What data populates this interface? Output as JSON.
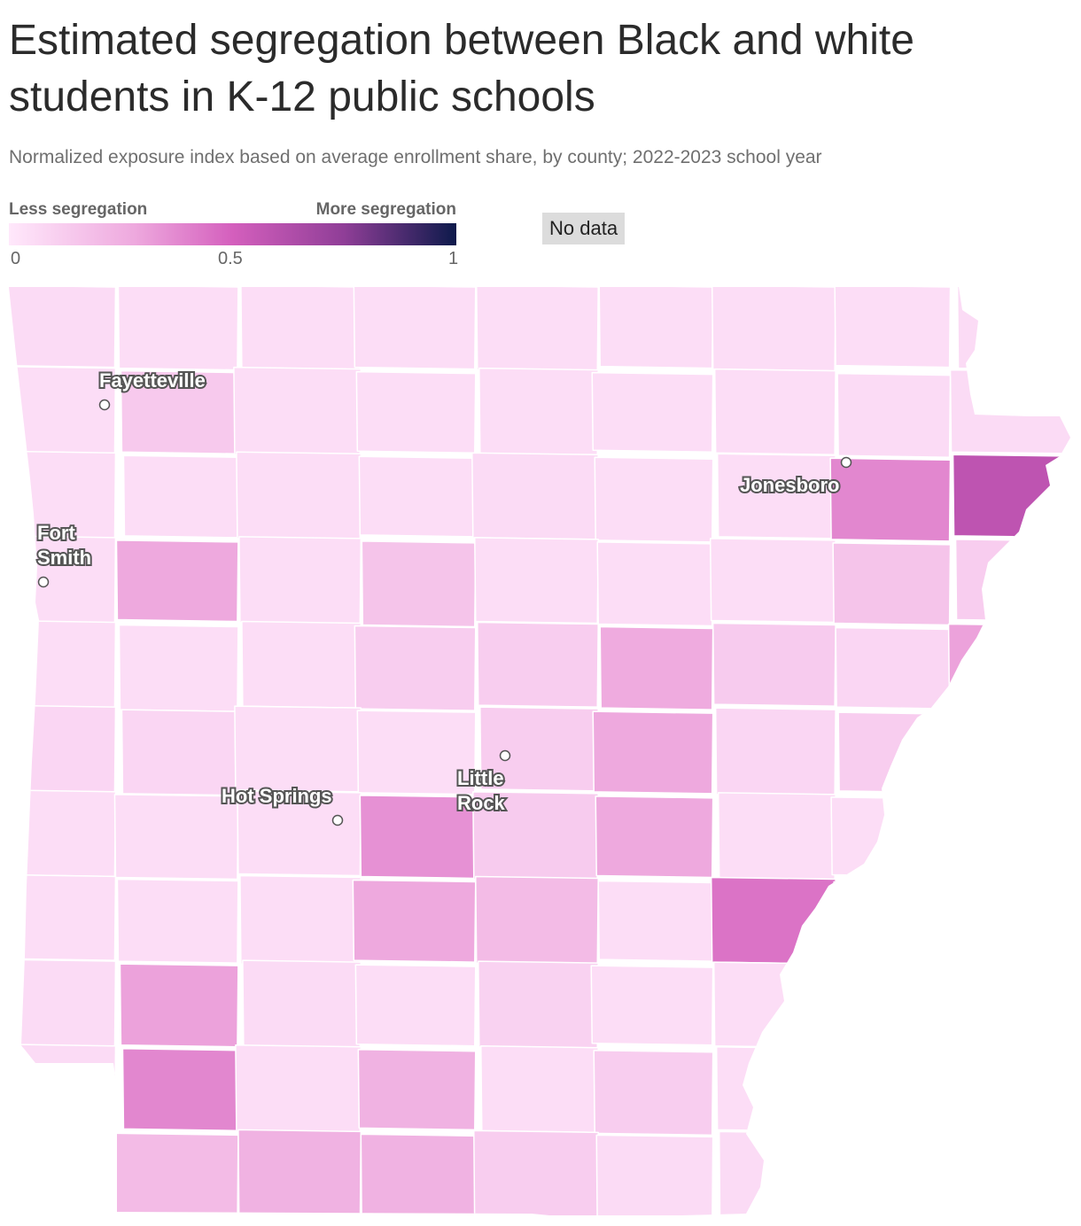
{
  "header": {
    "title": "Estimated segregation between Black and white students in K-12 public schools",
    "subtitle": "Normalized exposure index based on average enrollment share, by county; 2022-2023 school year"
  },
  "legend": {
    "left_label": "Less segregation",
    "right_label": "More segregation",
    "ticks": [
      "0",
      "0.5",
      "1"
    ],
    "no_data_label": "No data"
  },
  "colors": {
    "scale_low": "#ffe8fb",
    "scale_mid": "#d45fbd",
    "scale_high": "#0d1a4b",
    "no_data": "#dcdcdc"
  },
  "cities": [
    {
      "name": "Fayetteville"
    },
    {
      "name": "Fort Smith"
    },
    {
      "name": "Jonesboro"
    },
    {
      "name": "Little Rock"
    },
    {
      "name": "Hot Springs"
    }
  ],
  "chart_data": {
    "type": "choropleth",
    "region": "Arkansas counties",
    "scale": [
      0,
      1
    ],
    "counties": [
      {
        "value": 0.06
      },
      {
        "value": 0.05
      },
      {
        "value": 0.05
      },
      {
        "value": 0.05
      },
      {
        "value": 0.05
      },
      {
        "value": 0.05
      },
      {
        "value": 0.05
      },
      {
        "value": 0.05
      },
      {
        "value": 0.06
      },
      {
        "value": 0.05
      },
      {
        "value": 0.14
      },
      {
        "value": 0.05
      },
      {
        "value": 0.05
      },
      {
        "value": 0.05
      },
      {
        "value": 0.05
      },
      {
        "value": 0.05
      },
      {
        "value": 0.06
      },
      {
        "value": 0.06
      },
      {
        "value": 0.05
      },
      {
        "value": 0.05
      },
      {
        "value": 0.05
      },
      {
        "value": 0.05
      },
      {
        "value": 0.06
      },
      {
        "value": 0.05
      },
      {
        "value": 0.05
      },
      {
        "value": 0.38
      },
      {
        "value": 0.58
      },
      {
        "value": 0.05
      },
      {
        "value": 0.28
      },
      {
        "value": 0.05
      },
      {
        "value": 0.16
      },
      {
        "value": 0.05
      },
      {
        "value": 0.05
      },
      {
        "value": 0.05
      },
      {
        "value": 0.16
      },
      {
        "value": 0.12
      },
      {
        "value": 0.05
      },
      {
        "value": 0.05
      },
      {
        "value": 0.05
      },
      {
        "value": 0.12
      },
      {
        "value": 0.12
      },
      {
        "value": 0.27
      },
      {
        "value": 0.13
      },
      {
        "value": 0.08
      },
      {
        "value": 0.3
      },
      {
        "value": 0.08
      },
      {
        "value": 0.08
      },
      {
        "value": 0.05
      },
      {
        "value": 0.05
      },
      {
        "value": 0.12
      },
      {
        "value": 0.28
      },
      {
        "value": 0.08
      },
      {
        "value": 0.12
      },
      {
        "value": 0.7
      },
      {
        "value": 0.05
      },
      {
        "value": 0.05
      },
      {
        "value": 0.05
      },
      {
        "value": 0.35
      },
      {
        "value": 0.13
      },
      {
        "value": 0.28
      },
      {
        "value": 0.05
      },
      {
        "value": 0.05
      },
      {
        "value": 0.05
      },
      {
        "value": 0.05
      },
      {
        "value": 0.05
      },
      {
        "value": 0.05
      },
      {
        "value": 0.28
      },
      {
        "value": 0.2
      },
      {
        "value": 0.05
      },
      {
        "value": 0.44
      },
      {
        "value": 0.18
      },
      {
        "value": 0.42
      },
      {
        "value": 0.06
      },
      {
        "value": 0.3
      },
      {
        "value": 0.06
      },
      {
        "value": 0.05
      },
      {
        "value": 0.1
      },
      {
        "value": 0.05
      },
      {
        "value": 0.05
      },
      {
        "value": 0.15
      },
      {
        "value": 0.08
      },
      {
        "value": 0.06
      },
      {
        "value": 0.38
      },
      {
        "value": 0.05
      },
      {
        "value": 0.24
      },
      {
        "value": 0.05
      },
      {
        "value": 0.12
      },
      {
        "value": 0.05
      },
      {
        "value": 0.05
      },
      {
        "value": 0.13
      },
      {
        "value": 0.4
      },
      {
        "value": 0.2
      },
      {
        "value": 0.24
      },
      {
        "value": 0.24
      },
      {
        "value": 0.12
      },
      {
        "value": 0.06
      },
      {
        "value": 0.06
      },
      {
        "value": 0.08
      },
      {
        "value": 0.08
      }
    ]
  }
}
